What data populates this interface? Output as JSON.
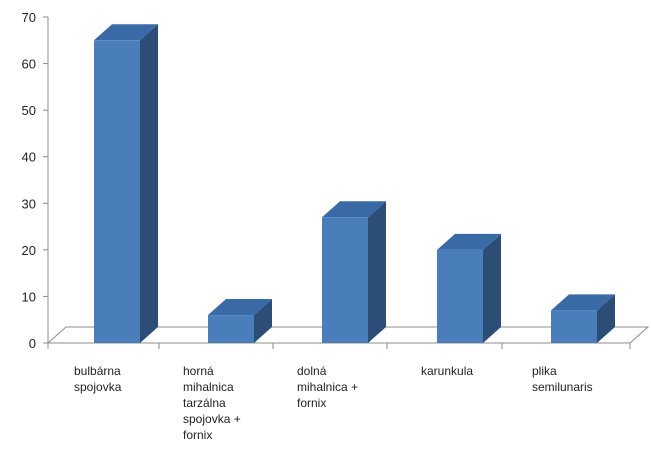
{
  "chart_data": {
    "type": "bar",
    "categories": [
      [
        "bulbárna",
        "spojovka"
      ],
      [
        "horná",
        "mihalnica",
        "tarzálna",
        "spojovka +",
        "fornix"
      ],
      [
        "dolná",
        "mihalnica +",
        "fornix"
      ],
      [
        "karunkula"
      ],
      [
        "plika",
        "semilunaris"
      ]
    ],
    "values": [
      65,
      6,
      27,
      20,
      7
    ],
    "ylim": [
      0,
      70
    ],
    "yticks": [
      0,
      10,
      20,
      30,
      40,
      50,
      60,
      70
    ],
    "grid": false,
    "legend": "none",
    "colors": {
      "bar_front": "#4a7ebb",
      "bar_side": "#2c4d75",
      "bar_top": "#3a6aa6",
      "axis": "#8c8c8c"
    }
  }
}
